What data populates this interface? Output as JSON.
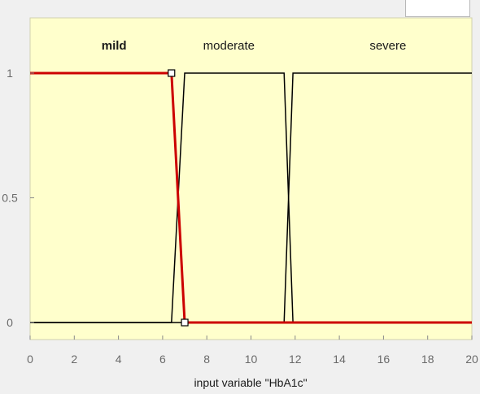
{
  "chart_data": {
    "type": "line",
    "xlabel": "input variable \"HbA1c\"",
    "xlim": [
      0,
      20
    ],
    "ylim": [
      0,
      1
    ],
    "xticks": [
      0,
      2,
      4,
      6,
      8,
      10,
      12,
      14,
      16,
      18,
      20
    ],
    "yticks": [
      0,
      0.5,
      1
    ],
    "ytick_labels": [
      "0",
      "0.5",
      "1"
    ],
    "grid": false,
    "colors": {
      "plot_background": "#ffffcc",
      "selected": "#cc0000",
      "normal": "#000000"
    },
    "series": [
      {
        "name": "mild",
        "selected": true,
        "x": [
          0,
          6.4,
          7.0,
          20
        ],
        "y": [
          1,
          1,
          0,
          0
        ]
      },
      {
        "name": "moderate",
        "selected": false,
        "x": [
          0,
          6.4,
          7.0,
          11.5,
          11.9,
          20
        ],
        "y": [
          0,
          0,
          1,
          1,
          0,
          0
        ]
      },
      {
        "name": "severe",
        "selected": false,
        "x": [
          0,
          11.5,
          11.9,
          20
        ],
        "y": [
          0,
          0,
          1,
          1
        ]
      }
    ],
    "label_x": [
      3.8,
      9.0,
      16.2
    ],
    "handles": [
      {
        "x": 6.4,
        "y": 1
      },
      {
        "x": 7.0,
        "y": 0
      }
    ]
  }
}
